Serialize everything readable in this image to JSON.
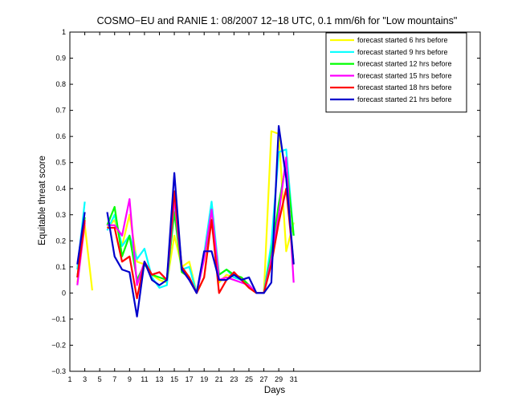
{
  "chart_data": {
    "type": "line",
    "title": "COSMO−EU and RANIE 1: 08/2007 12−18 UTC, 0.1 mm/6h for \"Low mountains\"",
    "xlabel": "Days",
    "ylabel": "Equitable threat score",
    "xlim": [
      1,
      56
    ],
    "ylim": [
      -0.3,
      1
    ],
    "xticks": [
      1,
      3,
      5,
      7,
      9,
      11,
      13,
      15,
      17,
      19,
      21,
      23,
      25,
      27,
      29,
      31
    ],
    "yticks": [
      -0.3,
      -0.2,
      -0.1,
      0,
      0.1,
      0.2,
      0.3,
      0.4,
      0.5,
      0.6,
      0.7,
      0.8,
      0.9,
      1
    ],
    "ytick_labels": [
      "−0.3",
      "−0.2",
      "−0.1",
      "0",
      "0.1",
      "0.2",
      "0.3",
      "0.4",
      "0.5",
      "0.6",
      "0.7",
      "0.8",
      "0.9",
      "1"
    ],
    "grid": false,
    "legend_position": "top-right",
    "series": [
      {
        "name": "forecast started 6 hrs before",
        "color": "#ffff00",
        "values": [
          [
            2,
            0.04
          ],
          [
            3,
            0.26
          ],
          [
            4,
            0.01
          ],
          null,
          [
            6,
            0.25
          ],
          [
            7,
            0.28
          ],
          [
            8,
            0.18
          ],
          [
            9,
            0.3
          ],
          [
            10,
            0.12
          ],
          [
            11,
            0.11
          ],
          [
            12,
            0.07
          ],
          [
            13,
            0.05
          ],
          [
            14,
            0.04
          ],
          [
            15,
            0.22
          ],
          [
            16,
            0.1
          ],
          [
            17,
            0.12
          ],
          [
            18,
            0.0
          ],
          [
            19,
            0.06
          ],
          [
            20,
            0.31
          ],
          [
            21,
            0.04
          ],
          [
            22,
            0.07
          ],
          [
            23,
            0.06
          ],
          [
            24,
            0.05
          ],
          [
            25,
            0.02
          ],
          [
            26,
            0.0
          ],
          [
            27,
            0.0
          ],
          [
            28,
            0.62
          ],
          [
            29,
            0.61
          ],
          [
            30,
            0.16
          ],
          [
            31,
            0.27
          ]
        ]
      },
      {
        "name": "forecast started 9 hrs before",
        "color": "#00ffff",
        "values": [
          [
            2,
            0.09
          ],
          [
            3,
            0.35
          ],
          null,
          [
            6,
            0.24
          ],
          [
            7,
            0.3
          ],
          [
            8,
            0.18
          ],
          [
            9,
            0.22
          ],
          [
            10,
            0.13
          ],
          [
            11,
            0.17
          ],
          [
            12,
            0.06
          ],
          [
            13,
            0.02
          ],
          [
            14,
            0.03
          ],
          [
            15,
            0.33
          ],
          [
            16,
            0.09
          ],
          [
            17,
            0.1
          ],
          [
            18,
            0.0
          ],
          [
            19,
            0.15
          ],
          [
            20,
            0.35
          ],
          [
            21,
            0.07
          ],
          [
            22,
            0.09
          ],
          [
            23,
            0.06
          ],
          [
            24,
            0.05
          ],
          [
            25,
            0.03
          ],
          [
            26,
            0.0
          ],
          [
            27,
            0.0
          ],
          [
            28,
            0.19
          ],
          [
            29,
            0.54
          ],
          [
            30,
            0.55
          ],
          [
            31,
            0.22
          ]
        ]
      },
      {
        "name": "forecast started 12 hrs before",
        "color": "#00ff00",
        "values": [
          [
            2,
            0.06
          ],
          [
            3,
            0.29
          ],
          null,
          [
            6,
            0.26
          ],
          [
            7,
            0.33
          ],
          [
            8,
            0.14
          ],
          [
            9,
            0.22
          ],
          [
            10,
            0.05
          ],
          [
            11,
            0.11
          ],
          [
            12,
            0.07
          ],
          [
            13,
            0.06
          ],
          [
            14,
            0.05
          ],
          [
            15,
            0.31
          ],
          [
            16,
            0.08
          ],
          [
            17,
            0.06
          ],
          [
            18,
            0.0
          ],
          [
            19,
            0.14
          ],
          [
            20,
            0.28
          ],
          [
            21,
            0.07
          ],
          [
            22,
            0.09
          ],
          [
            23,
            0.07
          ],
          [
            24,
            0.06
          ],
          [
            25,
            0.03
          ],
          [
            26,
            0.0
          ],
          [
            27,
            0.0
          ],
          [
            28,
            0.15
          ],
          [
            29,
            0.34
          ],
          [
            30,
            0.5
          ],
          [
            31,
            0.22
          ]
        ]
      },
      {
        "name": "forecast started 15 hrs before",
        "color": "#ff00ff",
        "values": [
          [
            2,
            0.03
          ],
          [
            3,
            0.27
          ],
          null,
          [
            6,
            0.26
          ],
          [
            7,
            0.26
          ],
          [
            8,
            0.22
          ],
          [
            9,
            0.36
          ],
          [
            10,
            0.03
          ],
          [
            11,
            0.12
          ],
          [
            12,
            0.07
          ],
          [
            13,
            0.08
          ],
          [
            14,
            0.05
          ],
          [
            15,
            0.36
          ],
          [
            16,
            0.09
          ],
          [
            17,
            0.05
          ],
          [
            18,
            0.0
          ],
          [
            19,
            0.13
          ],
          [
            20,
            0.32
          ],
          [
            21,
            0.05
          ],
          [
            22,
            0.06
          ],
          [
            23,
            0.05
          ],
          [
            24,
            0.04
          ],
          [
            25,
            0.03
          ],
          [
            26,
            0.0
          ],
          [
            27,
            0.0
          ],
          [
            28,
            0.13
          ],
          [
            29,
            0.3
          ],
          [
            30,
            0.52
          ],
          [
            31,
            0.04
          ]
        ]
      },
      {
        "name": "forecast started 18 hrs before",
        "color": "#ff0000",
        "values": [
          [
            2,
            0.06
          ],
          [
            3,
            0.28
          ],
          null,
          [
            6,
            0.25
          ],
          [
            7,
            0.25
          ],
          [
            8,
            0.12
          ],
          [
            9,
            0.14
          ],
          [
            10,
            -0.02
          ],
          [
            11,
            0.12
          ],
          [
            12,
            0.07
          ],
          [
            13,
            0.08
          ],
          [
            14,
            0.05
          ],
          [
            15,
            0.39
          ],
          [
            16,
            0.1
          ],
          [
            17,
            0.06
          ],
          [
            18,
            0.0
          ],
          [
            19,
            0.06
          ],
          [
            20,
            0.28
          ],
          [
            21,
            0.0
          ],
          [
            22,
            0.05
          ],
          [
            23,
            0.08
          ],
          [
            24,
            0.05
          ],
          [
            25,
            0.02
          ],
          [
            26,
            0.0
          ],
          [
            27,
            0.0
          ],
          [
            28,
            0.11
          ],
          [
            29,
            0.27
          ],
          [
            30,
            0.4
          ],
          [
            31,
            0.11
          ]
        ]
      },
      {
        "name": "forecast started 21 hrs before",
        "color": "#0000cc",
        "values": [
          [
            2,
            0.11
          ],
          [
            3,
            0.31
          ],
          null,
          [
            6,
            0.31
          ],
          [
            7,
            0.14
          ],
          [
            8,
            0.09
          ],
          [
            9,
            0.08
          ],
          [
            10,
            -0.09
          ],
          [
            11,
            0.12
          ],
          [
            12,
            0.05
          ],
          [
            13,
            0.03
          ],
          [
            14,
            0.05
          ],
          [
            15,
            0.46
          ],
          [
            16,
            0.09
          ],
          [
            17,
            0.05
          ],
          [
            18,
            0.0
          ],
          [
            19,
            0.16
          ],
          [
            20,
            0.16
          ],
          [
            21,
            0.05
          ],
          [
            22,
            0.05
          ],
          [
            23,
            0.07
          ],
          [
            24,
            0.05
          ],
          [
            25,
            0.06
          ],
          [
            26,
            0.0
          ],
          [
            27,
            0.0
          ],
          [
            28,
            0.04
          ],
          [
            29,
            0.64
          ],
          [
            30,
            0.44
          ],
          [
            31,
            0.11
          ]
        ]
      }
    ]
  }
}
